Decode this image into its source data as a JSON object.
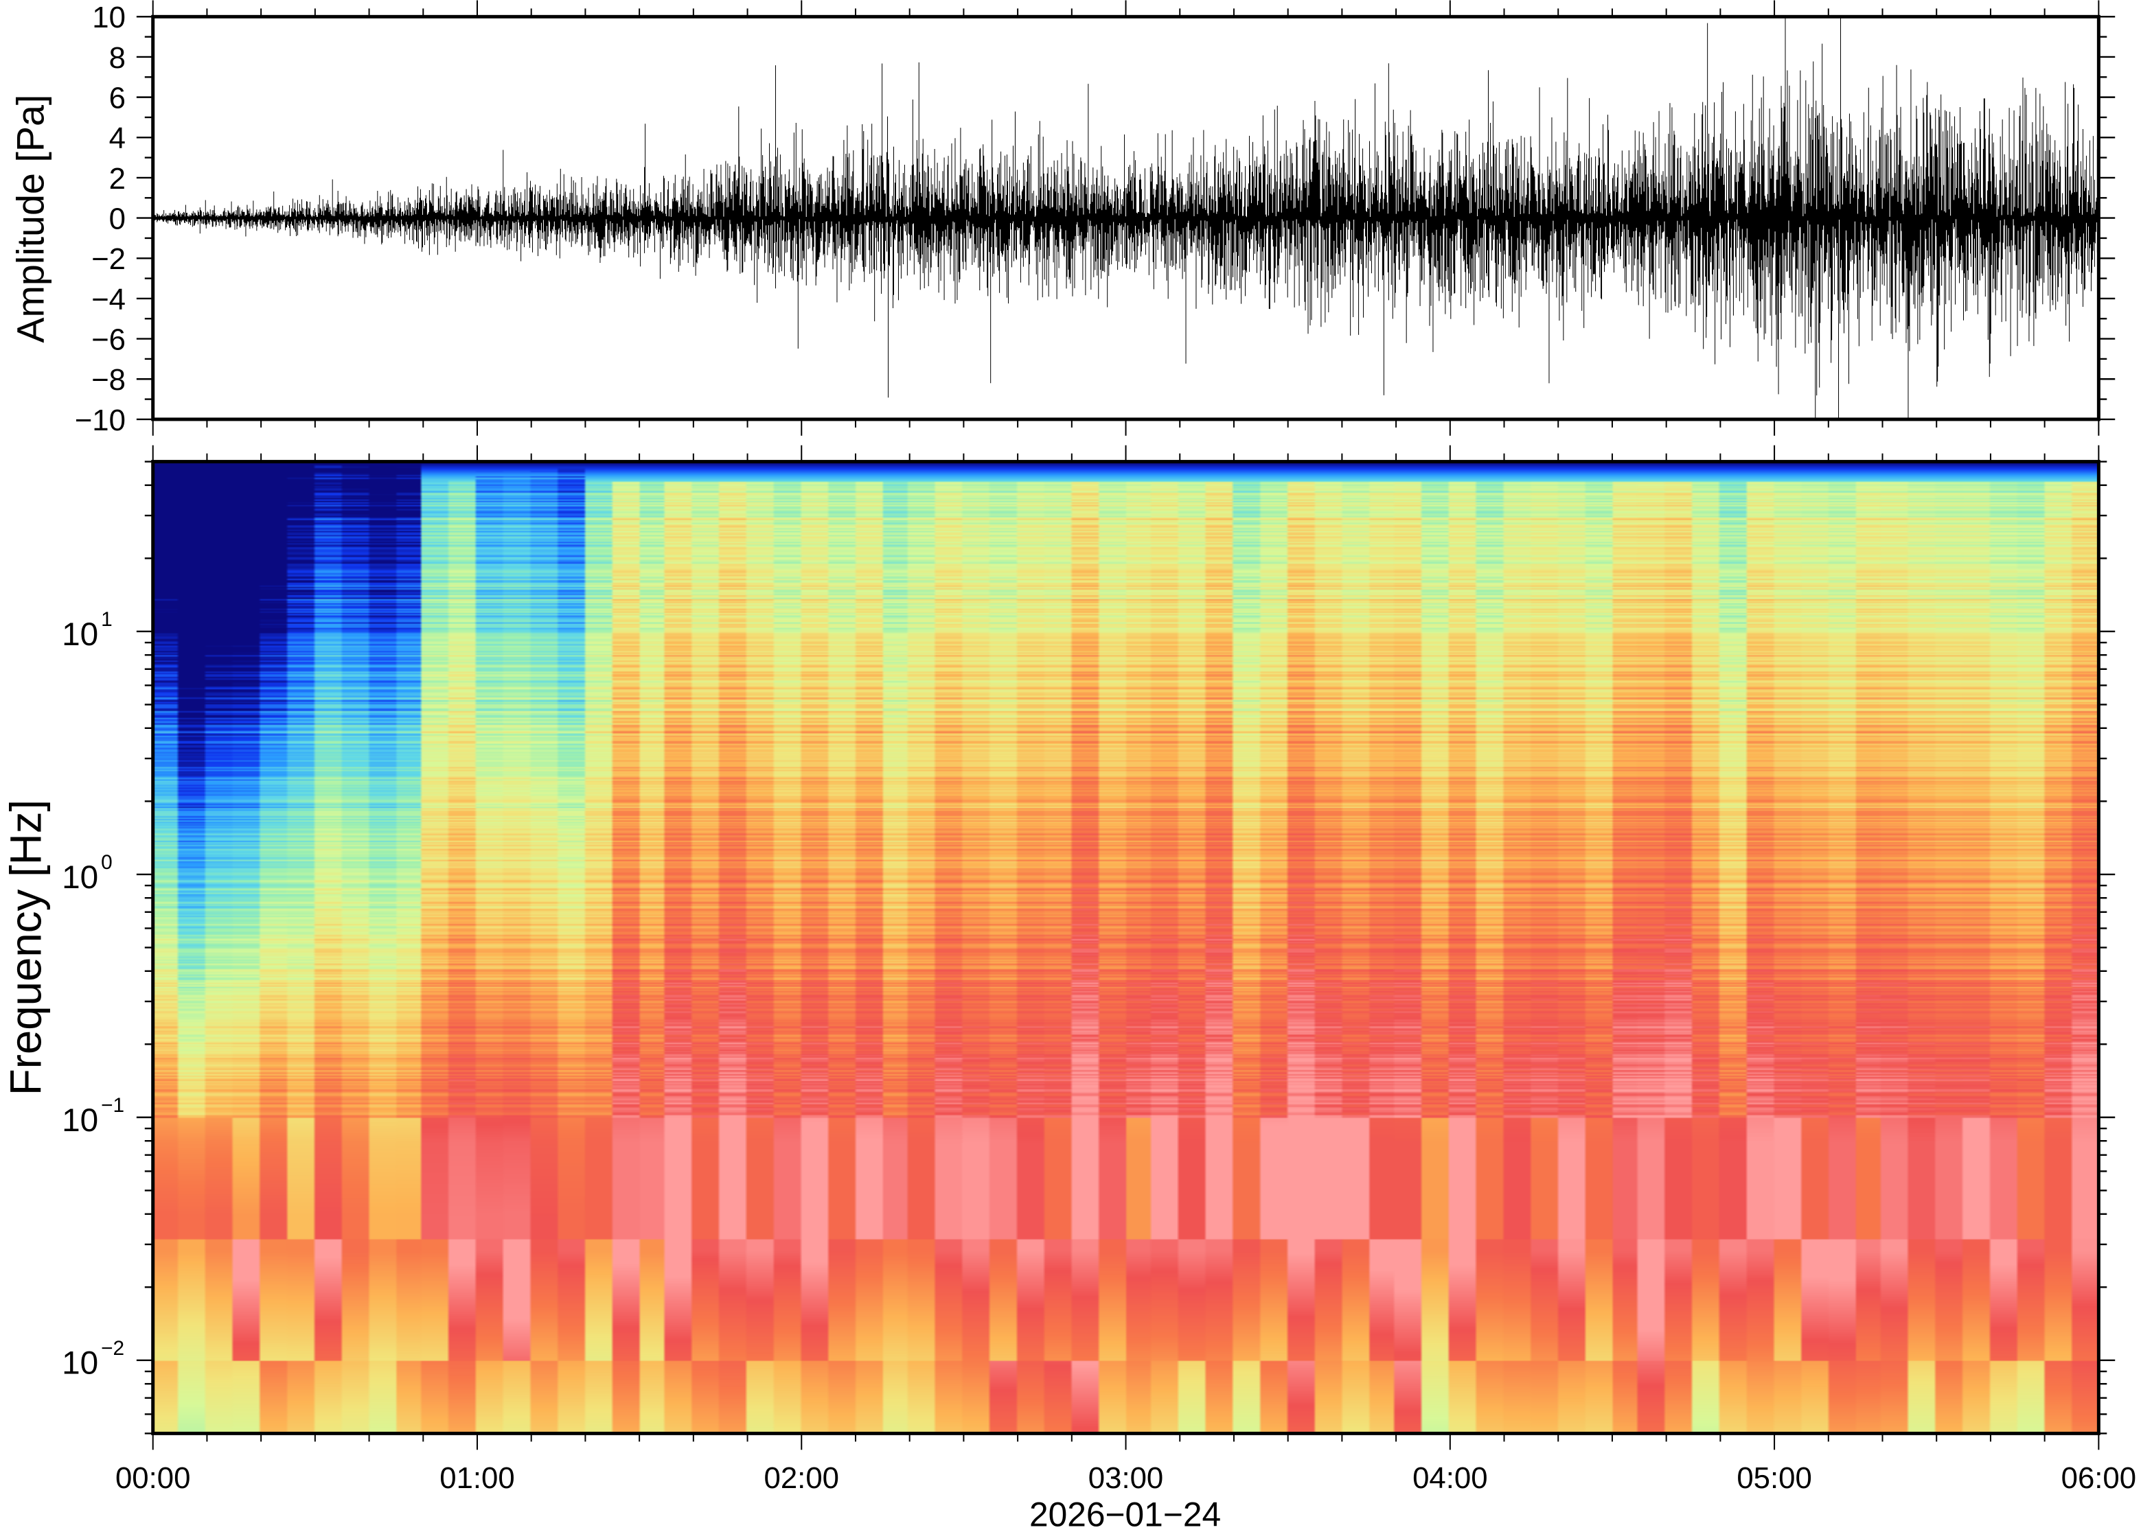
{
  "chart_data": [
    {
      "type": "line",
      "title": "",
      "xlabel": "",
      "ylabel": "Amplitude [Pa]",
      "ylim": [
        -10,
        10
      ],
      "yticks": [
        "10",
        "8",
        "6",
        "4",
        "2",
        "0",
        "−2",
        "−4",
        "−6",
        "−8",
        "−10"
      ],
      "xlim_hours": [
        0,
        6
      ],
      "grid": false,
      "series": [
        {
          "name": "pressure trace",
          "color": "#000000",
          "envelope_hours": [
            0,
            0.5,
            1,
            1.5,
            2,
            2.5,
            3,
            3.5,
            4,
            4.5,
            5,
            5.5,
            6
          ],
          "envelope_pa": [
            0.2,
            0.8,
            1.4,
            1.8,
            3.5,
            3.5,
            3.0,
            4.5,
            4.5,
            4.0,
            6.0,
            6.0,
            5.0
          ],
          "peak_max_pa": 10,
          "peak_min_pa": -10
        }
      ]
    },
    {
      "type": "heatmap",
      "title": "",
      "xlabel": "2026−01−24",
      "ylabel": "Frequency [Hz]",
      "yscale": "log",
      "ylim_hz": [
        0.005,
        50
      ],
      "yticks": [
        {
          "base": "10",
          "exp": "1"
        },
        {
          "base": "10",
          "exp": "0"
        },
        {
          "base": "10",
          "exp": "−1"
        },
        {
          "base": "10",
          "exp": "−2"
        }
      ],
      "xticks": [
        "00:00",
        "01:00",
        "02:00",
        "03:00",
        "04:00",
        "05:00",
        "06:00"
      ],
      "xlim_hours": [
        0,
        6
      ],
      "colormap": [
        "#0a0a80",
        "#1038f0",
        "#2a9cff",
        "#5fd8e8",
        "#9ef0b0",
        "#d8f898",
        "#f2e47a",
        "#fdb454",
        "#f8784a",
        "#f05252",
        "#ff9c9c"
      ],
      "notes": "low power above 1 Hz before 00:50 and 01:00–01:18; broadband power increases toward 05:00; peak power near 0.05–0.1 Hz"
    }
  ]
}
